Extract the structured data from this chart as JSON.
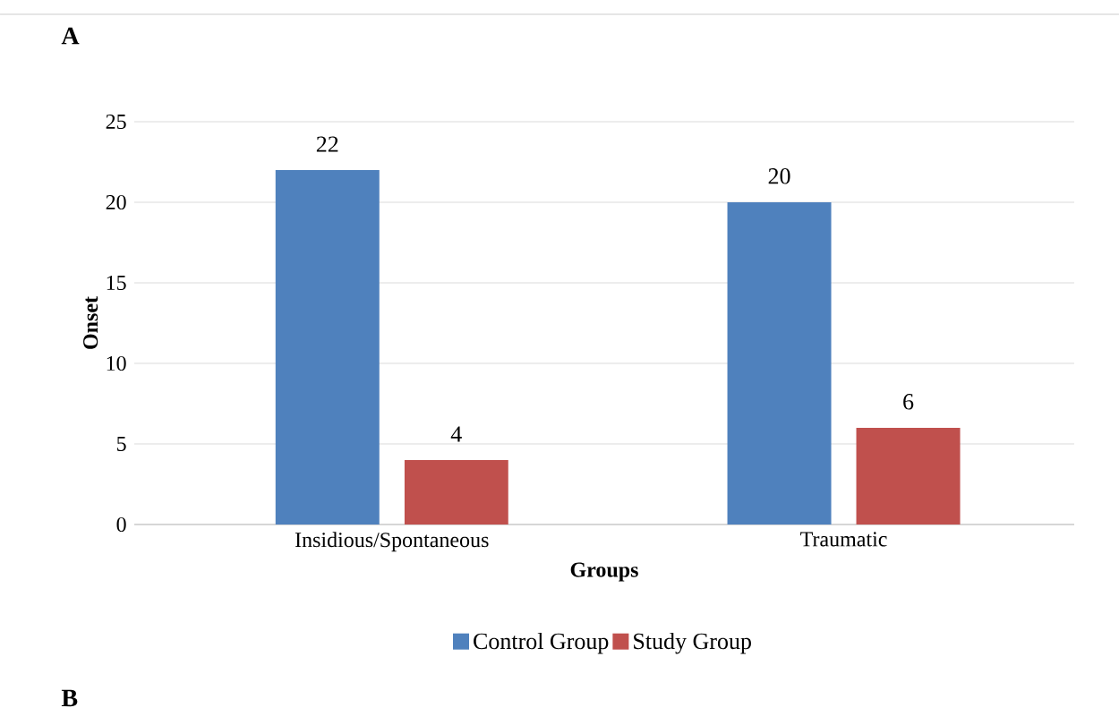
{
  "chart_data": {
    "type": "bar",
    "xlabel": "Groups",
    "ylabel": "Onset",
    "categories": [
      "Insidious/Spontaneous",
      "Traumatic"
    ],
    "series": [
      {
        "name": "Control Group",
        "color": "#4f81bd",
        "values": [
          22,
          20
        ]
      },
      {
        "name": "Study Group",
        "color": "#c0504d",
        "values": [
          4,
          6
        ]
      }
    ],
    "ylim": [
      0,
      25
    ],
    "yticks": [
      0,
      5,
      10,
      15,
      20,
      25
    ],
    "grid": "y",
    "legend": "bottom",
    "data_labels": true,
    "annotations": [
      "A",
      "B"
    ]
  }
}
